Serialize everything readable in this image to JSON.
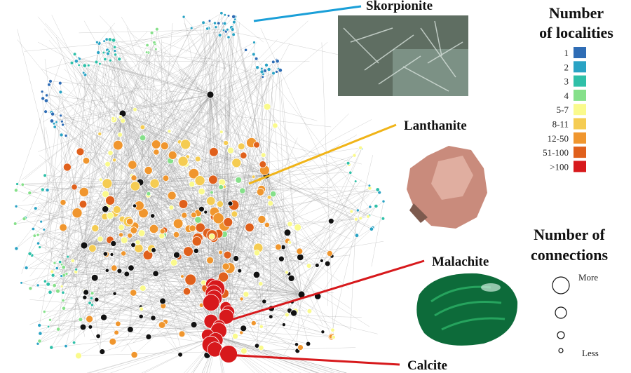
{
  "callouts": [
    {
      "label": "Skorpionite"
    },
    {
      "label": "Lanthanite"
    },
    {
      "label": "Malachite"
    },
    {
      "label": "Calcite"
    }
  ],
  "legend_localities": {
    "title_lines": [
      "Number",
      "of localities"
    ],
    "items": [
      {
        "label": "1",
        "color": "#2f6db5"
      },
      {
        "label": "2",
        "color": "#2aa3c4"
      },
      {
        "label": "3",
        "color": "#2fc0a8"
      },
      {
        "label": "4",
        "color": "#86e08a"
      },
      {
        "label": "5-7",
        "color": "#fafa8c"
      },
      {
        "label": "8-11",
        "color": "#f5cc52"
      },
      {
        "label": "12-50",
        "color": "#f0962e"
      },
      {
        "label": "51-100",
        "color": "#e0601c"
      },
      {
        "label": ">100",
        "color": "#d7191c"
      }
    ]
  },
  "legend_connections": {
    "title_lines": [
      "Number of",
      "connections"
    ],
    "more": "More",
    "less": "Less"
  }
}
